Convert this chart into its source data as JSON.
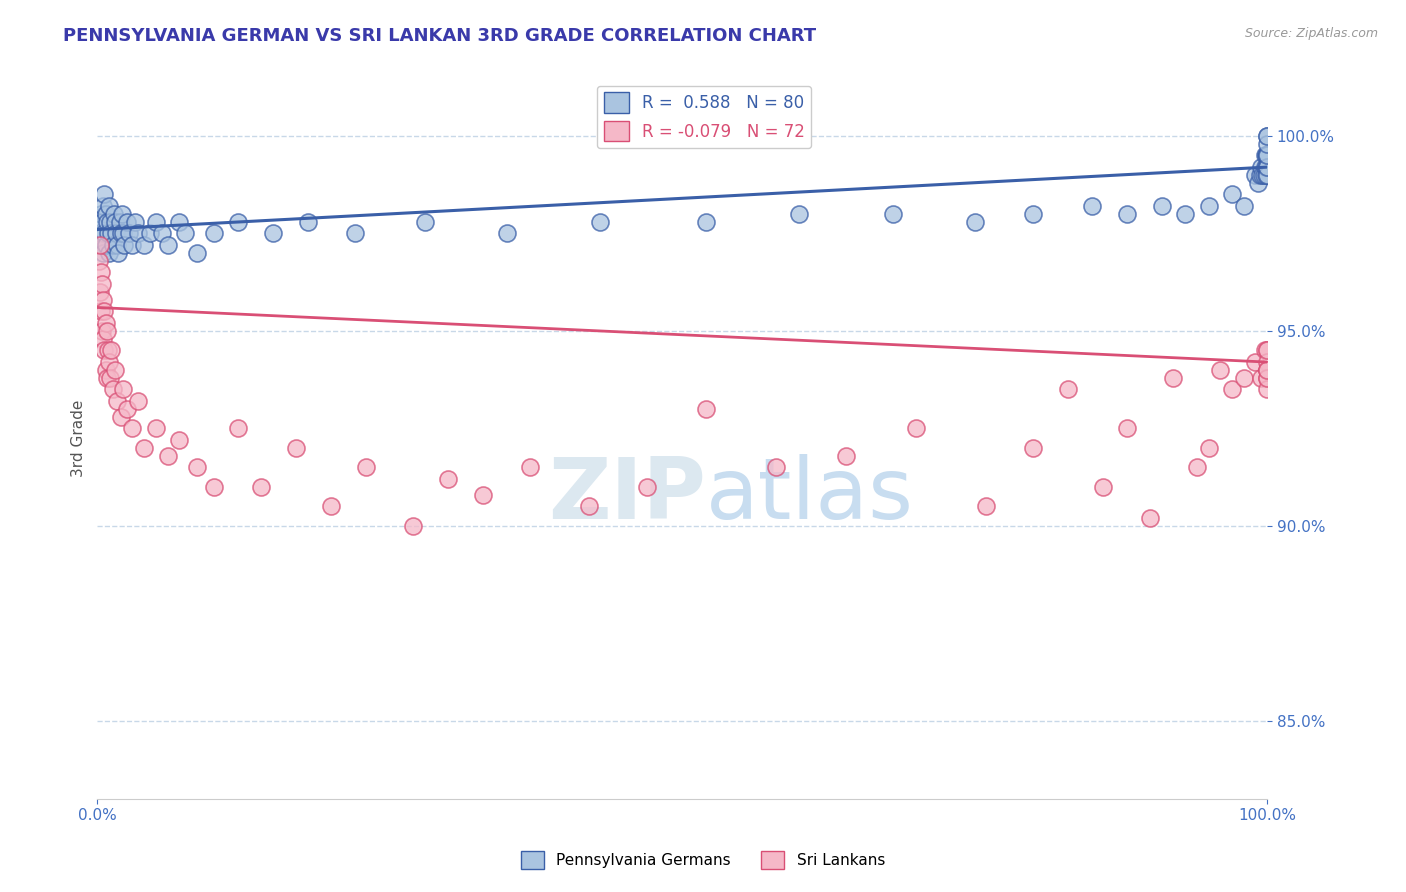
{
  "title": "PENNSYLVANIA GERMAN VS SRI LANKAN 3RD GRADE CORRELATION CHART",
  "source": "Source: ZipAtlas.com",
  "ylabel": "3rd Grade",
  "xmin": 0.0,
  "xmax": 100.0,
  "ymin": 83.0,
  "ymax": 101.5,
  "blue_R": 0.588,
  "blue_N": 80,
  "pink_R": -0.079,
  "pink_N": 72,
  "blue_color": "#aac4e0",
  "pink_color": "#f5b8c8",
  "blue_line_color": "#3a5fa8",
  "pink_line_color": "#d94f75",
  "legend_label_blue": "Pennsylvania Germans",
  "legend_label_pink": "Sri Lankans",
  "title_color": "#3a3aaa",
  "axis_color": "#4472c4",
  "grid_color": "#c8d8e8",
  "background_color": "#ffffff",
  "blue_line_y0": 97.6,
  "blue_line_y1": 99.2,
  "pink_line_y0": 95.6,
  "pink_line_y1": 94.2,
  "blue_x": [
    0.2,
    0.3,
    0.3,
    0.4,
    0.5,
    0.5,
    0.6,
    0.6,
    0.7,
    0.7,
    0.8,
    0.9,
    1.0,
    1.0,
    1.1,
    1.2,
    1.3,
    1.4,
    1.5,
    1.6,
    1.7,
    1.8,
    1.9,
    2.0,
    2.1,
    2.2,
    2.3,
    2.5,
    2.7,
    3.0,
    3.2,
    3.5,
    4.0,
    4.5,
    5.0,
    5.5,
    6.0,
    7.0,
    7.5,
    8.5,
    10.0,
    12.0,
    15.0,
    18.0,
    22.0,
    28.0,
    35.0,
    43.0,
    52.0,
    60.0,
    68.0,
    75.0,
    80.0,
    85.0,
    88.0,
    91.0,
    93.0,
    95.0,
    97.0,
    98.0,
    99.0,
    99.2,
    99.4,
    99.5,
    99.6,
    99.7,
    99.8,
    99.85,
    99.9,
    99.92,
    99.95,
    99.97,
    99.98,
    99.99,
    100.0,
    100.0,
    100.0,
    100.0,
    100.0,
    100.0
  ],
  "blue_y": [
    97.5,
    97.2,
    98.0,
    97.8,
    97.0,
    98.2,
    97.5,
    98.5,
    97.2,
    98.0,
    97.8,
    97.5,
    97.0,
    98.2,
    97.8,
    97.5,
    97.2,
    98.0,
    97.8,
    97.5,
    97.2,
    97.0,
    97.8,
    97.5,
    98.0,
    97.5,
    97.2,
    97.8,
    97.5,
    97.2,
    97.8,
    97.5,
    97.2,
    97.5,
    97.8,
    97.5,
    97.2,
    97.8,
    97.5,
    97.0,
    97.5,
    97.8,
    97.5,
    97.8,
    97.5,
    97.8,
    97.5,
    97.8,
    97.8,
    98.0,
    98.0,
    97.8,
    98.0,
    98.2,
    98.0,
    98.2,
    98.0,
    98.2,
    98.5,
    98.2,
    99.0,
    98.8,
    99.0,
    99.2,
    99.0,
    99.0,
    99.2,
    99.5,
    99.0,
    99.2,
    99.5,
    99.2,
    99.5,
    99.0,
    99.5,
    99.2,
    99.5,
    100.0,
    99.8,
    100.0
  ],
  "pink_x": [
    0.1,
    0.2,
    0.2,
    0.3,
    0.3,
    0.4,
    0.4,
    0.5,
    0.5,
    0.6,
    0.6,
    0.7,
    0.7,
    0.8,
    0.8,
    0.9,
    1.0,
    1.1,
    1.2,
    1.3,
    1.5,
    1.7,
    2.0,
    2.2,
    2.5,
    3.0,
    3.5,
    4.0,
    5.0,
    6.0,
    7.0,
    8.5,
    10.0,
    12.0,
    14.0,
    17.0,
    20.0,
    23.0,
    27.0,
    30.0,
    33.0,
    37.0,
    42.0,
    47.0,
    52.0,
    58.0,
    64.0,
    70.0,
    76.0,
    80.0,
    83.0,
    86.0,
    88.0,
    90.0,
    92.0,
    94.0,
    95.0,
    96.0,
    97.0,
    98.0,
    99.0,
    99.5,
    99.8,
    100.0,
    100.0,
    100.0,
    100.0,
    100.0,
    100.0,
    100.0,
    100.0,
    100.0
  ],
  "pink_y": [
    96.8,
    96.0,
    97.2,
    95.5,
    96.5,
    95.0,
    96.2,
    94.8,
    95.8,
    94.5,
    95.5,
    94.0,
    95.2,
    93.8,
    95.0,
    94.5,
    94.2,
    93.8,
    94.5,
    93.5,
    94.0,
    93.2,
    92.8,
    93.5,
    93.0,
    92.5,
    93.2,
    92.0,
    92.5,
    91.8,
    92.2,
    91.5,
    91.0,
    92.5,
    91.0,
    92.0,
    90.5,
    91.5,
    90.0,
    91.2,
    90.8,
    91.5,
    90.5,
    91.0,
    93.0,
    91.5,
    91.8,
    92.5,
    90.5,
    92.0,
    93.5,
    91.0,
    92.5,
    90.2,
    93.8,
    91.5,
    92.0,
    94.0,
    93.5,
    93.8,
    94.2,
    93.8,
    94.5,
    94.0,
    94.5,
    93.8,
    94.2,
    93.5,
    94.0,
    93.8,
    94.5,
    94.0
  ]
}
